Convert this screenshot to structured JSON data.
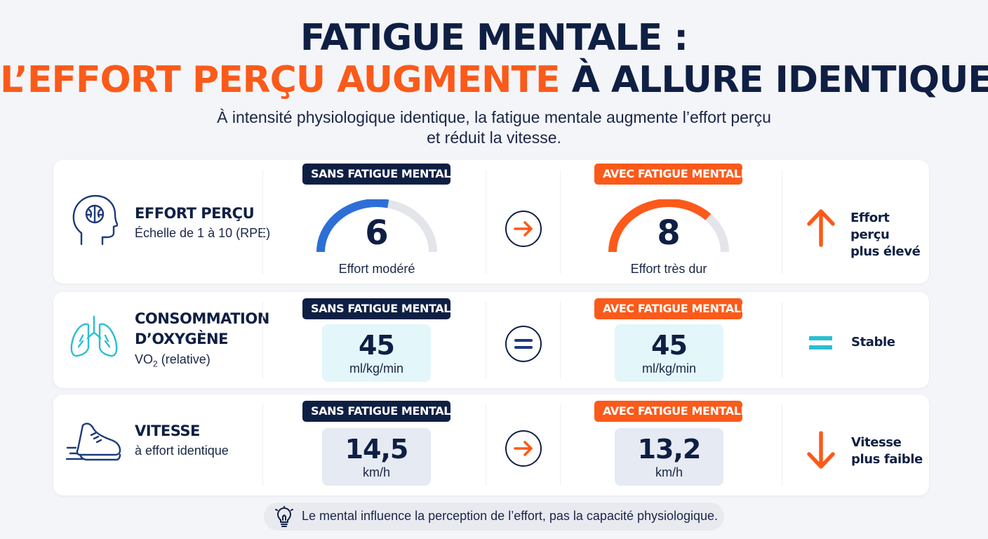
{
  "title": {
    "line1": "FATIGUE MENTALE :",
    "line2_highlight": "L’EFFORT PERÇU AUGMENTE",
    "line2_rest": " À ALLURE IDENTIQUE"
  },
  "subtitle": {
    "line1": "À intensité physiologique identique, la fatigue mentale augmente l’effort perçu",
    "line2": "et réduit la vitesse."
  },
  "labels": {
    "without": "SANS FATIGUE MENTALE",
    "with": "AVEC FATIGUE MENTALE"
  },
  "rows": [
    {
      "title_lines": [
        "EFFORT PERÇU"
      ],
      "subtitle": "Échelle de 1 à 10 (RPE)",
      "icon": "head-brain-icon",
      "without": {
        "value": "6",
        "caption": "Effort modéré",
        "level": 6,
        "max": 10
      },
      "with": {
        "value": "8",
        "caption": "Effort très dur",
        "level": 8,
        "max": 10
      },
      "comparison_icon": "arrow-right-icon",
      "effect": {
        "icon": "arrow-up-icon",
        "lines": [
          "Effort perçu",
          "plus élevé"
        ]
      }
    },
    {
      "title_lines": [
        "CONSOMMATION",
        "D’OXYGÈNE"
      ],
      "subtitle_main": "VO",
      "subtitle_sub": "2",
      "subtitle_rest": " (relative)",
      "icon": "lungs-icon",
      "without": {
        "value": "45",
        "unit": "ml/kg/min"
      },
      "with": {
        "value": "45",
        "unit": "ml/kg/min"
      },
      "comparison_icon": "equals-icon",
      "effect": {
        "icon": "equals-icon",
        "lines": [
          "Stable"
        ]
      }
    },
    {
      "title_lines": [
        "VITESSE"
      ],
      "subtitle": "à effort identique",
      "icon": "running-shoe-icon",
      "without": {
        "value": "14,5",
        "unit": "km/h"
      },
      "with": {
        "value": "13,2",
        "unit": "km/h"
      },
      "comparison_icon": "arrow-right-icon",
      "effect": {
        "icon": "arrow-down-icon",
        "lines": [
          "Vitesse",
          "plus faible"
        ]
      }
    }
  ],
  "footer": {
    "icon": "lightbulb-icon",
    "text": "Le mental influence la perception de l’effort, pas la capacité physiologique."
  },
  "colors": {
    "navy": "#0f1f44",
    "orange": "#fb5a1a",
    "blue": "#2d6fd6",
    "cyan": "#2bbfd0",
    "gauge_track": "#e3e5ea"
  }
}
